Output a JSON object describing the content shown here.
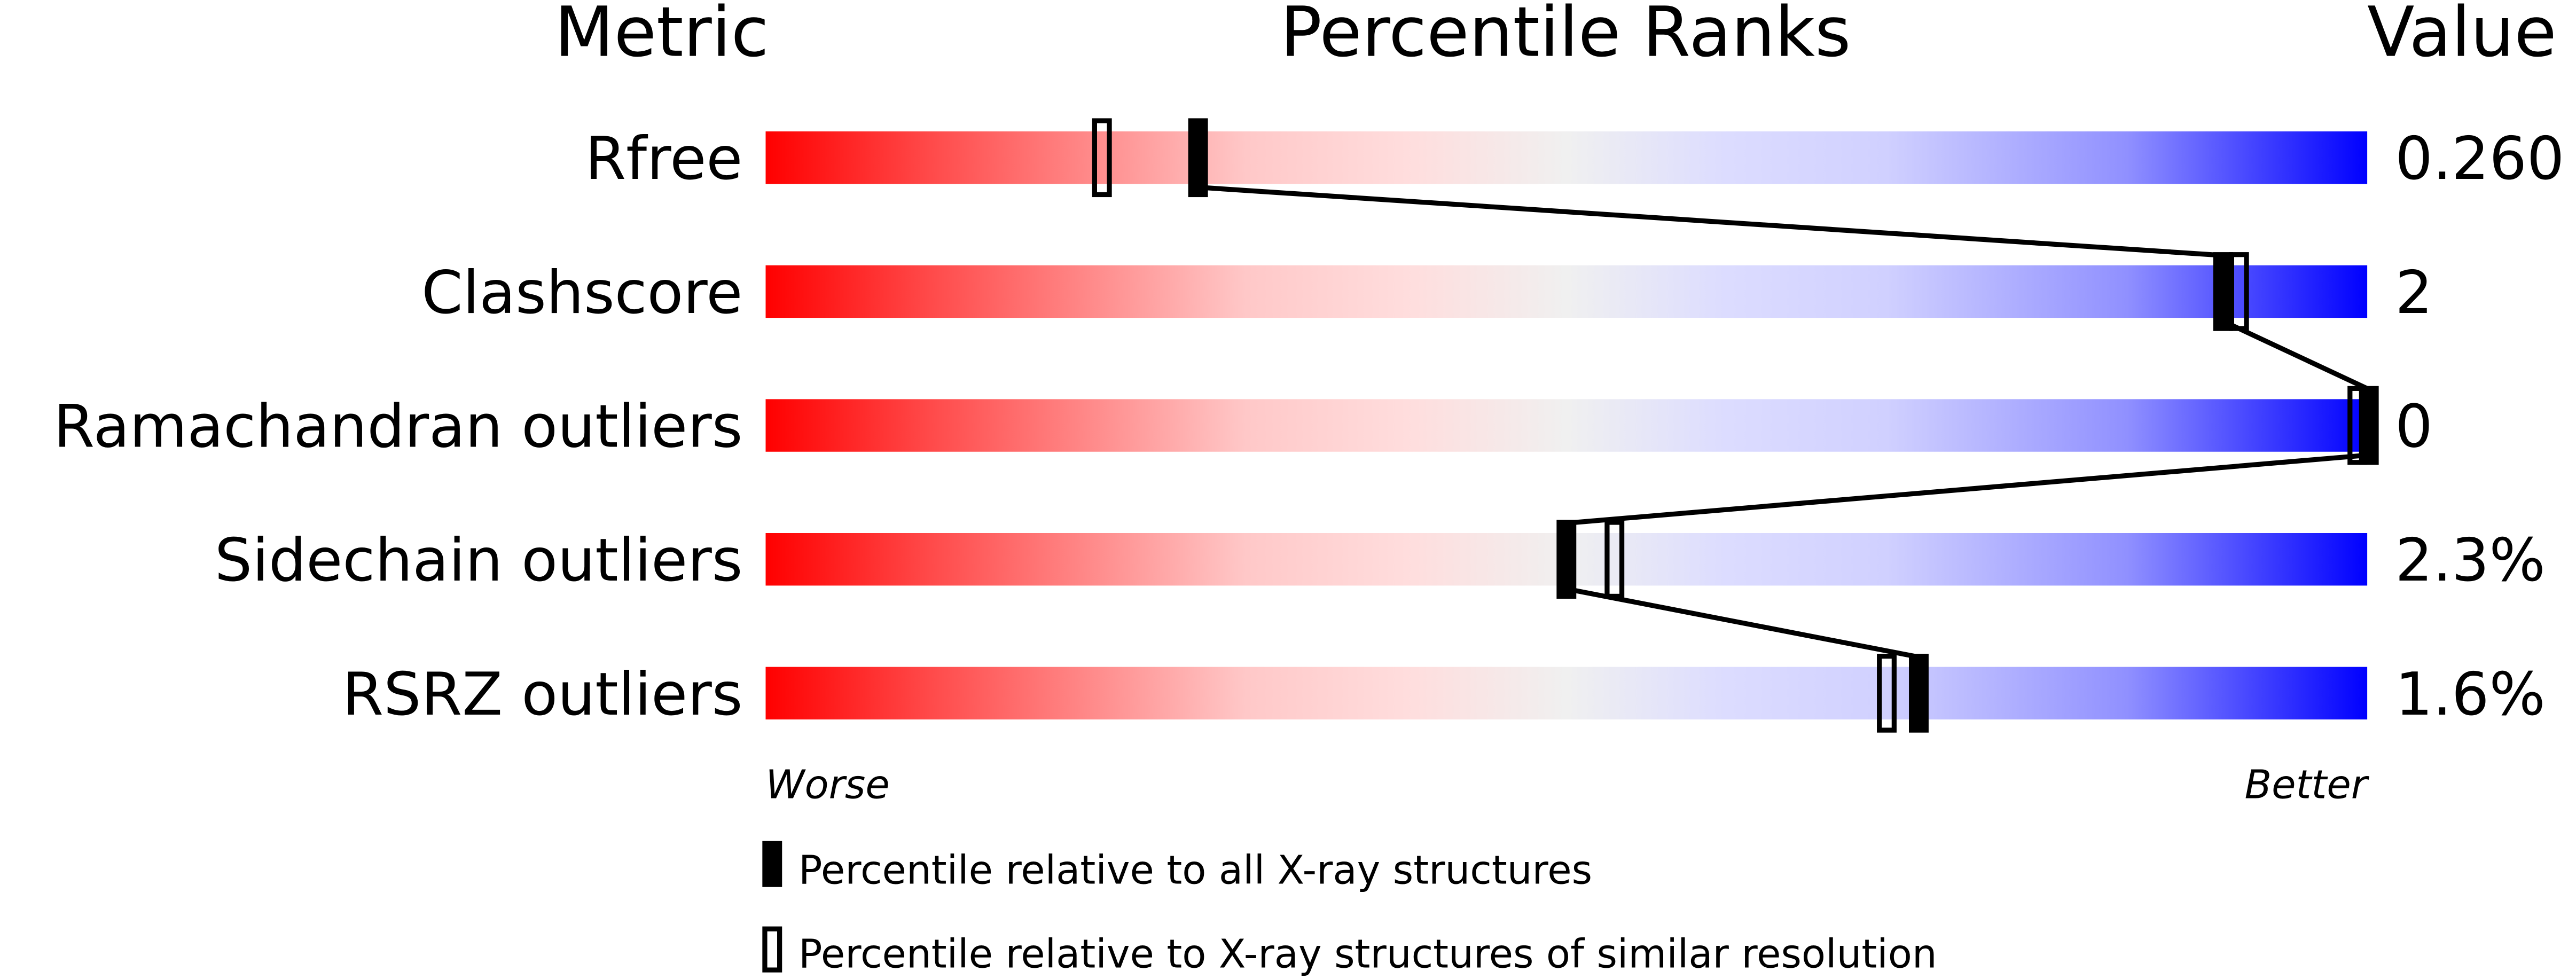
{
  "chart_data": {
    "type": "percentile-slider",
    "headers": {
      "metric": "Metric",
      "ranks": "Percentile Ranks",
      "value": "Value"
    },
    "xlim": [
      0,
      100
    ],
    "rows": [
      {
        "metric": "Rfree",
        "value": "0.260",
        "percentile_all": 27,
        "percentile_similar": 21
      },
      {
        "metric": "Clashscore",
        "value": "2",
        "percentile_all": 91,
        "percentile_similar": 92
      },
      {
        "metric": "Ramachandran outliers",
        "value": "0",
        "percentile_all": 100,
        "percentile_similar": 100
      },
      {
        "metric": "Sidechain outliers",
        "value": "2.3%",
        "percentile_all": 50,
        "percentile_similar": 53
      },
      {
        "metric": "RSRZ outliers",
        "value": "1.6%",
        "percentile_all": 72,
        "percentile_similar": 70
      }
    ],
    "axis_labels": {
      "worse": "Worse",
      "better": "Better"
    },
    "legend": {
      "filled": "Percentile relative to all X-ray structures",
      "open": "Percentile relative to X-ray structures of similar resolution"
    },
    "colors": {
      "worse": "#ff0000",
      "middle": "#f0f0f0",
      "better": "#0000ff",
      "marker": "#000000"
    }
  }
}
